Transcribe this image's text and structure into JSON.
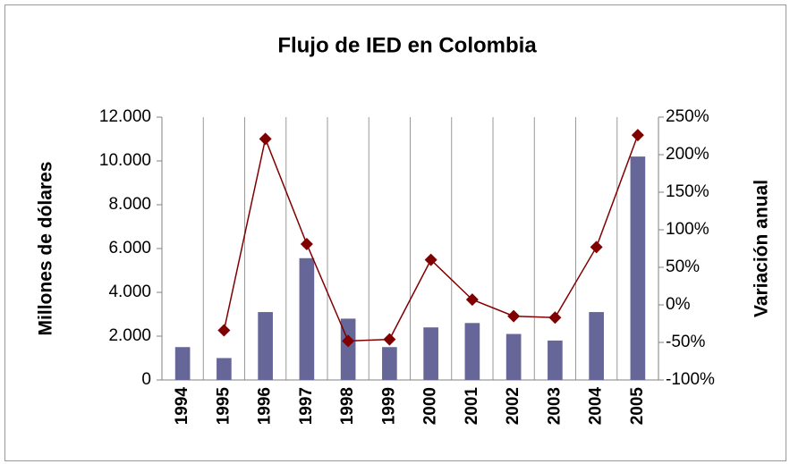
{
  "chart_data": {
    "type": "bar+line",
    "title": "Flujo de IED en Colombia",
    "ylabel": "Millones de dólares",
    "y2label": "Variación anual",
    "categories": [
      "1994",
      "1995",
      "1996",
      "1997",
      "1998",
      "1999",
      "2000",
      "2001",
      "2002",
      "2003",
      "2004",
      "2005"
    ],
    "series": [
      {
        "type": "bar",
        "color": "#666699",
        "values": [
          1500,
          1000,
          3100,
          5560,
          2800,
          1500,
          2400,
          2600,
          2100,
          1800,
          3100,
          10200
        ]
      },
      {
        "type": "line",
        "axis": "y2",
        "color": "#800000",
        "values": [
          null,
          -34,
          221,
          81,
          -48,
          -46,
          60,
          7,
          -15,
          -17,
          77,
          226
        ]
      }
    ],
    "ylim": [
      0,
      12000
    ],
    "yticks": [
      0,
      {
        "value": 2000,
        "label": "2.000"
      },
      {
        "value": 4000,
        "label": "4.000"
      },
      {
        "value": 6000,
        "label": "6.000"
      },
      {
        "value": 8000,
        "label": "8.000"
      },
      {
        "value": 10000,
        "label": "10.000"
      },
      {
        "value": 12000,
        "label": "12.000"
      }
    ],
    "y2lim": [
      -100,
      250
    ],
    "y2ticks": [
      {
        "value": -100,
        "label": "-100%"
      },
      {
        "value": -50,
        "label": "-50%"
      },
      {
        "value": 0,
        "label": "0%"
      },
      {
        "value": 50,
        "label": "50%"
      },
      {
        "value": 100,
        "label": "100%"
      },
      {
        "value": 150,
        "label": "150%"
      },
      {
        "value": 200,
        "label": "200%"
      },
      {
        "value": 250,
        "label": "250%"
      }
    ],
    "grid": true
  }
}
